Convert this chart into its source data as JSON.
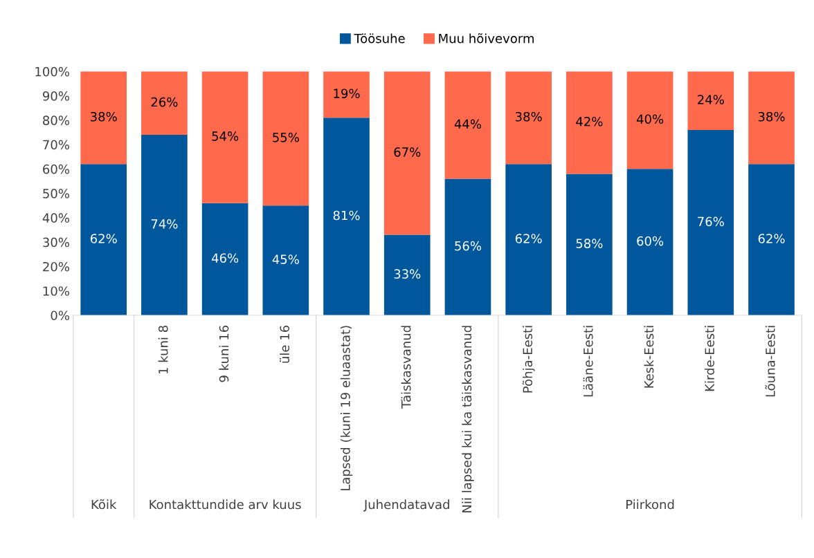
{
  "chart_data": {
    "type": "bar",
    "stacked": true,
    "legend": "top",
    "grid": false,
    "categories": [
      null,
      "1 kuni 8",
      "9 kuni 16",
      "üle 16",
      "Lapsed (kuni 19 eluaastat)",
      "Täiskasvanud",
      "Nii lapsed kui ka täiskasvanud",
      "Põhja-Eesti",
      "Lääne-Eesti",
      "Kesk-Eesti",
      "Kirde-Eesti",
      "Lõuna-Eesti"
    ],
    "series": [
      {
        "name": "Töösuhe",
        "color": "#01579b",
        "values": [
          62,
          74,
          46,
          45,
          81,
          33,
          56,
          62,
          58,
          60,
          76,
          62
        ],
        "value_labels": [
          "62%",
          "74%",
          "46%",
          "45%",
          "81%",
          "33%",
          "56%",
          "62%",
          "58%",
          "60%",
          "76%",
          "62%"
        ]
      },
      {
        "name": "Muu hõivevorm",
        "color": "#ff6a4d",
        "values": [
          38,
          26,
          54,
          55,
          19,
          67,
          44,
          38,
          42,
          40,
          24,
          38
        ],
        "value_labels": [
          "38%",
          "26%",
          "54%",
          "55%",
          "19%",
          "67%",
          "44%",
          "38%",
          "42%",
          "40%",
          "24%",
          "38%"
        ]
      }
    ],
    "ylim": [
      0,
      100
    ],
    "yticks": [
      {
        "value": 0,
        "label": "0%"
      },
      {
        "value": 10,
        "label": "10%"
      },
      {
        "value": 20,
        "label": "20%"
      },
      {
        "value": 30,
        "label": "30%"
      },
      {
        "value": 40,
        "label": "40%"
      },
      {
        "value": 50,
        "label": "50%"
      },
      {
        "value": 60,
        "label": "60%"
      },
      {
        "value": 70,
        "label": "70%"
      },
      {
        "value": 80,
        "label": "80%"
      },
      {
        "value": 90,
        "label": "90%"
      },
      {
        "value": 100,
        "label": "100%"
      }
    ],
    "annotations": [
      "Kõik",
      "Kontakttundide arv kuus",
      "Juhendatavad",
      "Piirkond"
    ]
  }
}
